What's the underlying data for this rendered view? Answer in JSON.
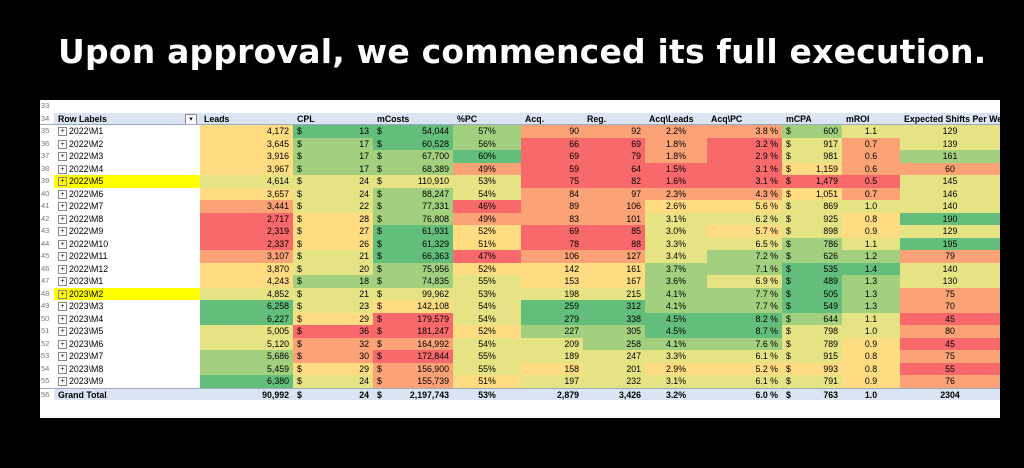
{
  "slide": {
    "title": "Upon approval, we commenced its full execution."
  },
  "table": {
    "first_row_number": "33",
    "header_row_number": "34",
    "headers": {
      "row_labels": "Row Labels",
      "leads": "Leads",
      "cpl": "CPL",
      "mcosts": "mCosts",
      "pc": "%PC",
      "acq": "Acq.",
      "reg": "Reg.",
      "acq_leads": "Acq\\Leads",
      "acq_pc": "Acq\\PC",
      "mcpa": "mCPA",
      "mroi": "mROI",
      "shifts": "Expected Shifts Per Week"
    },
    "currency_symbol": "$",
    "rows": [
      {
        "n": "35",
        "label": "2022\\M1",
        "leads": "4,172",
        "cpl": "13",
        "mcosts": "54,044",
        "pc": "57%",
        "acq": "90",
        "reg": "92",
        "acq_leads": "2.2%",
        "acq_pc": "3.8 %",
        "mcpa": "600",
        "mroi": "1.1",
        "shifts": "129"
      },
      {
        "n": "36",
        "label": "2022\\M2",
        "leads": "3,645",
        "cpl": "17",
        "mcosts": "60,528",
        "pc": "56%",
        "acq": "66",
        "reg": "69",
        "acq_leads": "1.8%",
        "acq_pc": "3.2 %",
        "mcpa": "917",
        "mroi": "0.7",
        "shifts": "139"
      },
      {
        "n": "37",
        "label": "2022\\M3",
        "leads": "3,916",
        "cpl": "17",
        "mcosts": "67,700",
        "pc": "60%",
        "acq": "69",
        "reg": "79",
        "acq_leads": "1.8%",
        "acq_pc": "2.9 %",
        "mcpa": "981",
        "mroi": "0.6",
        "shifts": "161"
      },
      {
        "n": "38",
        "label": "2022\\M4",
        "leads": "3,967",
        "cpl": "17",
        "mcosts": "68,389",
        "pc": "49%",
        "acq": "59",
        "reg": "64",
        "acq_leads": "1.5%",
        "acq_pc": "3.1 %",
        "mcpa": "1,159",
        "mroi": "0.6",
        "shifts": "60"
      },
      {
        "n": "39",
        "label": "2022\\M5",
        "leads": "4,614",
        "cpl": "24",
        "mcosts": "110,910",
        "pc": "53%",
        "acq": "75",
        "reg": "82",
        "acq_leads": "1.6%",
        "acq_pc": "3.1 %",
        "mcpa": "1,479",
        "mroi": "0.5",
        "shifts": "145",
        "highlight": true
      },
      {
        "n": "40",
        "label": "2022\\M6",
        "leads": "3,657",
        "cpl": "24",
        "mcosts": "88,247",
        "pc": "54%",
        "acq": "84",
        "reg": "97",
        "acq_leads": "2.3%",
        "acq_pc": "4.3 %",
        "mcpa": "1,051",
        "mroi": "0.7",
        "shifts": "146"
      },
      {
        "n": "41",
        "label": "2022\\M7",
        "leads": "3,441",
        "cpl": "22",
        "mcosts": "77,331",
        "pc": "46%",
        "acq": "89",
        "reg": "106",
        "acq_leads": "2.6%",
        "acq_pc": "5.6 %",
        "mcpa": "869",
        "mroi": "1.0",
        "shifts": "140"
      },
      {
        "n": "42",
        "label": "2022\\M8",
        "leads": "2,717",
        "cpl": "28",
        "mcosts": "76,808",
        "pc": "49%",
        "acq": "83",
        "reg": "101",
        "acq_leads": "3.1%",
        "acq_pc": "6.2 %",
        "mcpa": "925",
        "mroi": "0.8",
        "shifts": "190"
      },
      {
        "n": "43",
        "label": "2022\\M9",
        "leads": "2,319",
        "cpl": "27",
        "mcosts": "61,931",
        "pc": "52%",
        "acq": "69",
        "reg": "85",
        "acq_leads": "3.0%",
        "acq_pc": "5.7 %",
        "mcpa": "898",
        "mroi": "0.9",
        "shifts": "129"
      },
      {
        "n": "44",
        "label": "2022\\M10",
        "leads": "2,337",
        "cpl": "26",
        "mcosts": "61,329",
        "pc": "51%",
        "acq": "78",
        "reg": "88",
        "acq_leads": "3.3%",
        "acq_pc": "6.5 %",
        "mcpa": "786",
        "mroi": "1.1",
        "shifts": "195"
      },
      {
        "n": "45",
        "label": "2022\\M11",
        "leads": "3,107",
        "cpl": "21",
        "mcosts": "66,363",
        "pc": "47%",
        "acq": "106",
        "reg": "127",
        "acq_leads": "3.4%",
        "acq_pc": "7.2 %",
        "mcpa": "626",
        "mroi": "1.2",
        "shifts": "79"
      },
      {
        "n": "46",
        "label": "2022\\M12",
        "leads": "3,870",
        "cpl": "20",
        "mcosts": "75,956",
        "pc": "52%",
        "acq": "142",
        "reg": "161",
        "acq_leads": "3.7%",
        "acq_pc": "7.1 %",
        "mcpa": "535",
        "mroi": "1.4",
        "shifts": "140"
      },
      {
        "n": "47",
        "label": "2023\\M1",
        "leads": "4,243",
        "cpl": "18",
        "mcosts": "74,835",
        "pc": "55%",
        "acq": "153",
        "reg": "167",
        "acq_leads": "3.6%",
        "acq_pc": "6.9 %",
        "mcpa": "489",
        "mroi": "1.3",
        "shifts": "130"
      },
      {
        "n": "48",
        "label": "2023\\M2",
        "leads": "4,852",
        "cpl": "21",
        "mcosts": "99,962",
        "pc": "53%",
        "acq": "198",
        "reg": "215",
        "acq_leads": "4.1%",
        "acq_pc": "7.7 %",
        "mcpa": "505",
        "mroi": "1.3",
        "shifts": "75",
        "highlight": true
      },
      {
        "n": "49",
        "label": "2023\\M3",
        "leads": "6,258",
        "cpl": "23",
        "mcosts": "142,108",
        "pc": "54%",
        "acq": "259",
        "reg": "312",
        "acq_leads": "4.1%",
        "acq_pc": "7.7 %",
        "mcpa": "549",
        "mroi": "1.3",
        "shifts": "70"
      },
      {
        "n": "50",
        "label": "2023\\M4",
        "leads": "6,227",
        "cpl": "29",
        "mcosts": "179,579",
        "pc": "54%",
        "acq": "279",
        "reg": "338",
        "acq_leads": "4.5%",
        "acq_pc": "8.2 %",
        "mcpa": "644",
        "mroi": "1.1",
        "shifts": "45"
      },
      {
        "n": "51",
        "label": "2023\\M5",
        "leads": "5,005",
        "cpl": "36",
        "mcosts": "181,247",
        "pc": "52%",
        "acq": "227",
        "reg": "305",
        "acq_leads": "4.5%",
        "acq_pc": "8.7 %",
        "mcpa": "798",
        "mroi": "1.0",
        "shifts": "80"
      },
      {
        "n": "52",
        "label": "2023\\M6",
        "leads": "5,120",
        "cpl": "32",
        "mcosts": "164,992",
        "pc": "54%",
        "acq": "209",
        "reg": "258",
        "acq_leads": "4.1%",
        "acq_pc": "7.6 %",
        "mcpa": "789",
        "mroi": "0.9",
        "shifts": "45"
      },
      {
        "n": "53",
        "label": "2023\\M7",
        "leads": "5,686",
        "cpl": "30",
        "mcosts": "172,844",
        "pc": "55%",
        "acq": "189",
        "reg": "247",
        "acq_leads": "3.3%",
        "acq_pc": "6.1 %",
        "mcpa": "915",
        "mroi": "0.8",
        "shifts": "75"
      },
      {
        "n": "54",
        "label": "2023\\M8",
        "leads": "5,459",
        "cpl": "29",
        "mcosts": "156,900",
        "pc": "55%",
        "acq": "158",
        "reg": "201",
        "acq_leads": "2.9%",
        "acq_pc": "5.2 %",
        "mcpa": "993",
        "mroi": "0.8",
        "shifts": "55"
      },
      {
        "n": "55",
        "label": "2023\\M9",
        "leads": "6,380",
        "cpl": "24",
        "mcosts": "155,739",
        "pc": "51%",
        "acq": "197",
        "reg": "232",
        "acq_leads": "3.1%",
        "acq_pc": "6.1 %",
        "mcpa": "791",
        "mroi": "0.9",
        "shifts": "76"
      }
    ],
    "grand_total": {
      "n": "56",
      "label": "Grand Total",
      "leads": "90,992",
      "cpl": "24",
      "mcosts": "2,197,743",
      "pc": "53%",
      "acq": "2,879",
      "reg": "3,426",
      "acq_leads": "3.2%",
      "acq_pc": "6.0 %",
      "mcpa": "763",
      "mroi": "1.0",
      "shifts": "2304"
    }
  }
}
